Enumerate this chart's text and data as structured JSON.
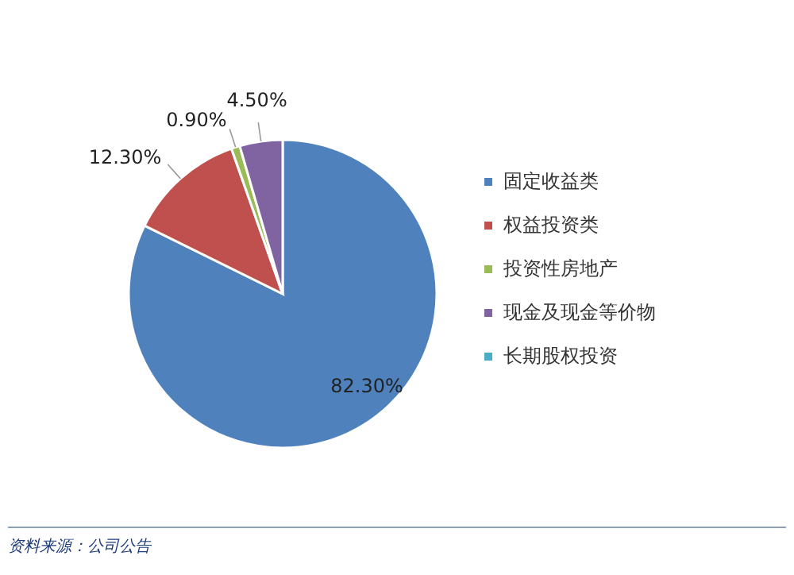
{
  "chart_data": {
    "type": "pie",
    "categories": [
      "固定收益类",
      "权益投资类",
      "投资性房地产",
      "现金及现金等价物",
      "长期股权投资"
    ],
    "values": [
      82.3,
      12.3,
      0.9,
      4.5,
      0
    ],
    "value_labels": [
      "82.30%",
      "12.30%",
      "0.90%",
      "4.50%",
      null
    ],
    "colors": [
      "#4f81bd",
      "#c0504d",
      "#9bbb59",
      "#8064a2",
      "#4bacc6"
    ],
    "legend": "right",
    "annotations": [
      "资料来源：公司公告"
    ]
  }
}
